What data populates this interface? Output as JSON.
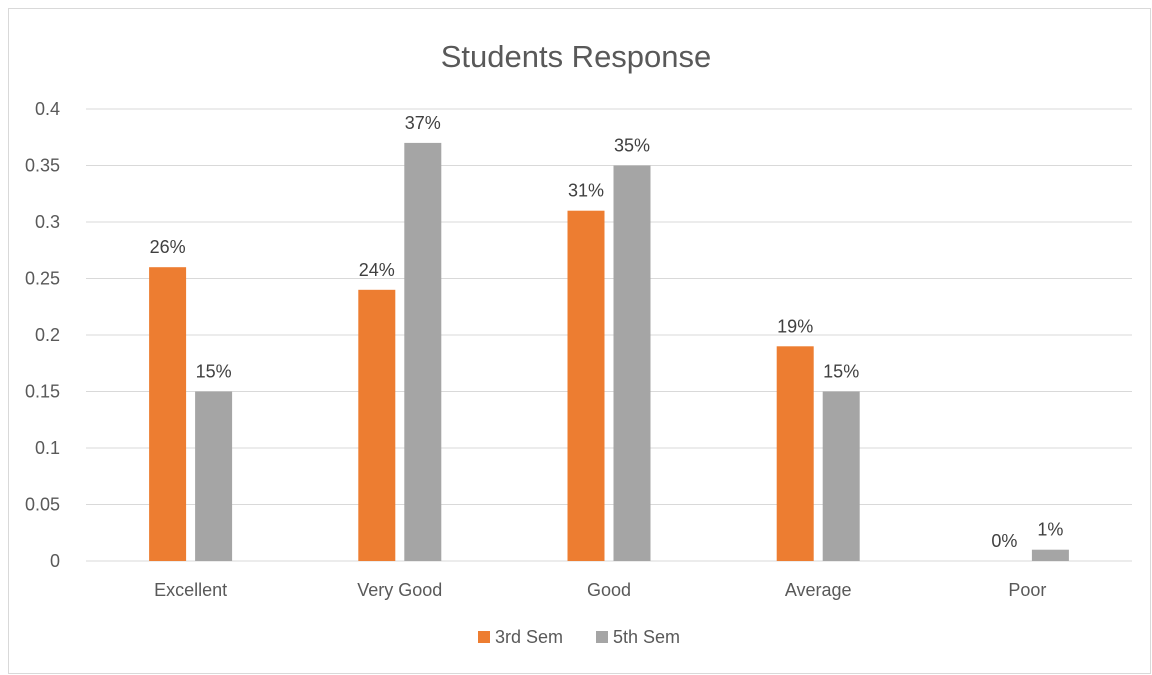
{
  "chart_data": {
    "type": "bar",
    "title": "Students Response",
    "categories": [
      "Excellent",
      "Very Good",
      "Good",
      "Average",
      "Poor"
    ],
    "series": [
      {
        "name": "3rd Sem",
        "color": "#ED7D31",
        "values": [
          0.26,
          0.24,
          0.31,
          0.19,
          0.0
        ],
        "labels": [
          "26%",
          "24%",
          "31%",
          "19%",
          "0%"
        ]
      },
      {
        "name": "5th Sem",
        "color": "#A5A5A5",
        "values": [
          0.15,
          0.37,
          0.35,
          0.15,
          0.01
        ],
        "labels": [
          "15%",
          "37%",
          "35%",
          "15%",
          "1%"
        ]
      }
    ],
    "ylim": [
      0,
      0.4
    ],
    "yticks": [
      "0",
      "0.05",
      "0.1",
      "0.15",
      "0.2",
      "0.25",
      "0.3",
      "0.35",
      "0.4"
    ],
    "grid": true,
    "legend": "bottom"
  }
}
